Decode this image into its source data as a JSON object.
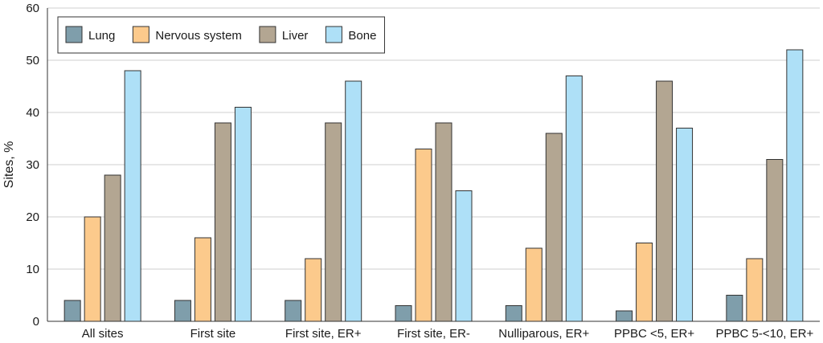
{
  "chart_data": {
    "type": "bar",
    "title": "",
    "xlabel": "",
    "ylabel": "Sites, %",
    "ylim": [
      0,
      60
    ],
    "yticks": [
      0,
      10,
      20,
      30,
      40,
      50,
      60
    ],
    "grid": "horizontal",
    "legend_position": "top-left",
    "categories": [
      "All sites",
      "First site",
      "First site, ER+",
      "First site, ER-",
      "Nulliparous, ER+",
      "PPBC <5, ER+",
      "PPBC 5-<10, ER+"
    ],
    "series": [
      {
        "name": "Lung",
        "color": "#7f9eab",
        "values": [
          4,
          4,
          4,
          3,
          3,
          2,
          5
        ]
      },
      {
        "name": "Nervous system",
        "color": "#fcca8c",
        "values": [
          20,
          16,
          12,
          33,
          14,
          15,
          12
        ]
      },
      {
        "name": "Liver",
        "color": "#b3a692",
        "values": [
          28,
          38,
          38,
          38,
          36,
          46,
          31
        ]
      },
      {
        "name": "Bone",
        "color": "#aee0f7",
        "values": [
          48,
          41,
          46,
          25,
          47,
          37,
          52
        ]
      }
    ]
  }
}
